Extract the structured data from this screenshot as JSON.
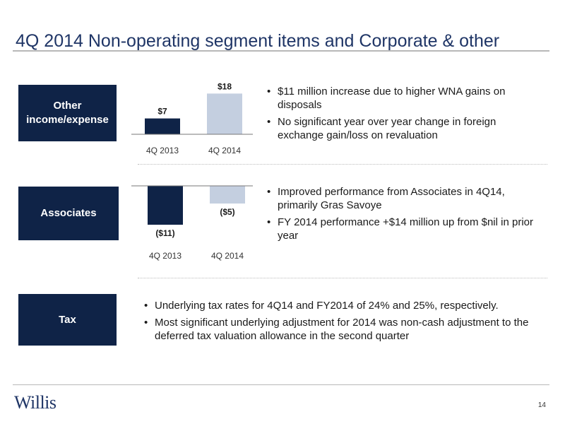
{
  "page_title": "4Q 2014 Non-operating segment items and Corporate & other",
  "colors": {
    "navy": "#0f2347",
    "light": "#c4cfe0",
    "title": "#1f3566"
  },
  "sections": {
    "other_income": {
      "label": "Other income/expense",
      "bullets": [
        "$11 million increase due to higher WNA gains on disposals",
        "No significant year over year change in foreign exchange gain/loss on revaluation"
      ]
    },
    "associates": {
      "label": "Associates",
      "bullets": [
        "Improved performance from Associates in 4Q14, primarily Gras Savoye",
        "FY 2014 performance +$14 million up from $nil in prior year"
      ]
    },
    "tax": {
      "label": "Tax",
      "bullets": [
        "Underlying tax rates for 4Q14 and FY2014 of 24% and 25%, respectively.",
        "Most significant underlying adjustment for 2014 was non-cash adjustment to the deferred tax valuation allowance in the second quarter"
      ]
    }
  },
  "chart_data": [
    {
      "type": "bar",
      "categories": [
        "4Q 2013",
        "4Q 2014"
      ],
      "values": [
        7,
        18
      ],
      "data_labels": [
        "$7",
        "$18"
      ],
      "bar_colors": [
        "#0f2347",
        "#c4cfe0"
      ]
    },
    {
      "type": "bar",
      "categories": [
        "4Q 2013",
        "4Q 2014"
      ],
      "values": [
        -11,
        -5
      ],
      "data_labels": [
        "($11)",
        "($5)"
      ],
      "bar_colors": [
        "#0f2347",
        "#c4cfe0"
      ]
    }
  ],
  "footer": {
    "logo_text": "Willis",
    "page_number": "14"
  }
}
